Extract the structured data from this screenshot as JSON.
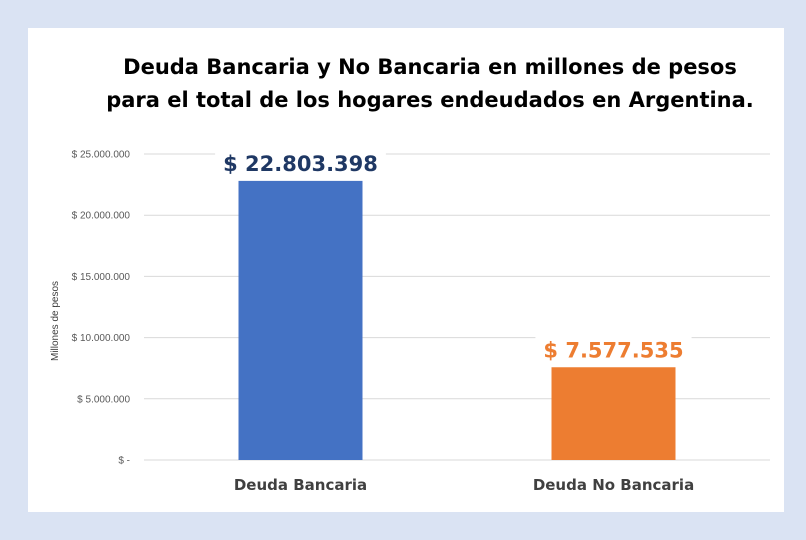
{
  "chart_data": {
    "type": "bar",
    "title_lines": [
      "Deuda Bancaria y No Bancaria en millones de pesos",
      "para el total de los hogares endeudados en Argentina."
    ],
    "ylabel": "Millones de pesos",
    "xlabel": "",
    "categories": [
      "Deuda Bancaria",
      "Deuda No Bancaria"
    ],
    "values": [
      22803398,
      7577535
    ],
    "data_labels": [
      "$ 22.803.398",
      "$ 7.577.535"
    ],
    "bar_colors": [
      "#4472c4",
      "#ed7d31"
    ],
    "data_label_colors": [
      "#1f3864",
      "#ed7d31"
    ],
    "ylim": [
      0,
      25000000
    ],
    "yticks": [
      {
        "value": 0,
        "label": "$ -"
      },
      {
        "value": 5000000,
        "label": "$ 5.000.000"
      },
      {
        "value": 10000000,
        "label": "$ 10.000.000"
      },
      {
        "value": 15000000,
        "label": "$ 15.000.000"
      },
      {
        "value": 20000000,
        "label": "$ 20.000.000"
      },
      {
        "value": 25000000,
        "label": "$ 25.000.000"
      }
    ],
    "grid": true,
    "legend": "none"
  }
}
